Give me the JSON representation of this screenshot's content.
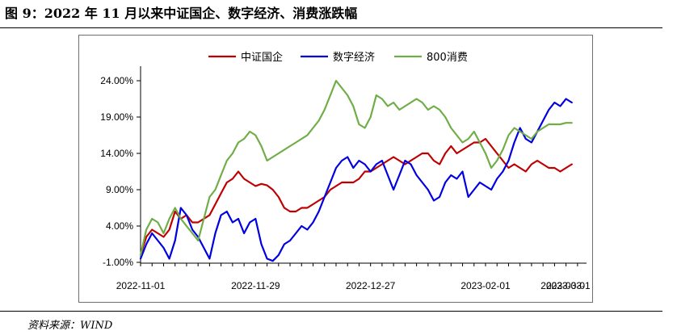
{
  "figure": {
    "title": "图 9：2022 年 11 月以来中证国企、数字经济、消费涨跌幅",
    "source": "资料来源：WIND"
  },
  "chart_data": {
    "type": "line",
    "ylim": [
      -1,
      26
    ],
    "y_ticks": [
      -1,
      4,
      9,
      14,
      19,
      24
    ],
    "y_tick_labels": [
      "-1.00%",
      "4.00%",
      "9.00%",
      "14.00%",
      "19.00%",
      "24.00%"
    ],
    "x_tick_labels": [
      "2022-11-01",
      "2022-11-29",
      "2022-12-27",
      "2023-02-01",
      "2023-03-01",
      "2023-03-"
    ],
    "x_tick_index": [
      0,
      20,
      40,
      60,
      80,
      100
    ],
    "legend_position": "top-center",
    "grid": false,
    "series": [
      {
        "name": "中证国企",
        "color": "#c00000",
        "values": [
          0.0,
          2.5,
          3.5,
          3.0,
          2.5,
          3.5,
          6.0,
          5.0,
          5.5,
          4.5,
          4.5,
          5.0,
          5.5,
          7.0,
          8.5,
          10.0,
          10.5,
          11.5,
          10.5,
          10.0,
          9.5,
          9.8,
          9.6,
          9.0,
          8.0,
          6.5,
          6.0,
          6.0,
          6.5,
          6.5,
          7.0,
          7.5,
          8.0,
          9.0,
          9.5,
          10.0,
          10.0,
          10.0,
          10.5,
          11.5,
          11.5,
          12.0,
          12.5,
          13.0,
          13.5,
          13.0,
          12.5,
          13.0,
          13.5,
          14.0,
          14.0,
          13.0,
          12.5,
          14.0,
          15.0,
          14.0,
          14.5,
          15.0,
          15.5,
          15.5,
          16.0,
          15.0,
          14.0,
          13.0,
          12.0,
          12.5,
          12.0,
          11.5,
          12.5,
          13.0,
          12.5,
          12.0,
          12.0,
          11.5,
          12.0,
          12.5
        ]
      },
      {
        "name": "数字经济",
        "color": "#0000e0",
        "values": [
          -0.5,
          1.5,
          3.0,
          2.0,
          1.0,
          -0.5,
          2.0,
          6.5,
          5.5,
          3.5,
          2.5,
          1.0,
          -0.5,
          3.0,
          5.5,
          6.0,
          4.5,
          5.0,
          3.0,
          4.5,
          5.0,
          1.5,
          -0.5,
          -0.8,
          0.0,
          1.5,
          2.0,
          3.0,
          4.0,
          3.5,
          4.5,
          6.0,
          8.0,
          10.0,
          12.0,
          13.0,
          13.5,
          12.0,
          13.0,
          12.5,
          11.5,
          12.5,
          13.0,
          11.0,
          9.0,
          11.0,
          13.0,
          12.5,
          11.0,
          10.0,
          9.0,
          7.5,
          8.0,
          10.0,
          11.0,
          10.5,
          11.5,
          8.0,
          9.0,
          10.0,
          9.5,
          9.0,
          10.5,
          11.5,
          13.0,
          15.5,
          17.5,
          16.0,
          15.5,
          17.0,
          18.5,
          20.0,
          21.0,
          20.5,
          21.5,
          21.0
        ]
      },
      {
        "name": "800消费",
        "color": "#70ad47",
        "values": [
          0.0,
          3.5,
          5.0,
          4.5,
          3.0,
          5.0,
          6.5,
          5.0,
          4.0,
          3.0,
          2.0,
          5.0,
          8.0,
          9.0,
          11.0,
          13.0,
          14.0,
          15.5,
          16.0,
          17.0,
          16.5,
          15.0,
          13.0,
          13.5,
          14.0,
          14.5,
          15.0,
          15.5,
          16.0,
          16.5,
          17.5,
          18.5,
          20.0,
          22.0,
          24.0,
          23.0,
          22.0,
          20.5,
          18.0,
          17.5,
          19.0,
          22.0,
          21.5,
          20.5,
          21.0,
          20.0,
          20.5,
          21.0,
          21.5,
          21.0,
          20.0,
          20.5,
          20.0,
          19.0,
          17.5,
          16.5,
          15.5,
          16.0,
          17.0,
          15.5,
          14.0,
          12.0,
          13.0,
          14.5,
          16.5,
          17.5,
          17.0,
          16.5,
          16.0,
          17.0,
          17.5,
          18.0,
          18.0,
          18.0,
          18.2,
          18.2
        ]
      }
    ]
  }
}
